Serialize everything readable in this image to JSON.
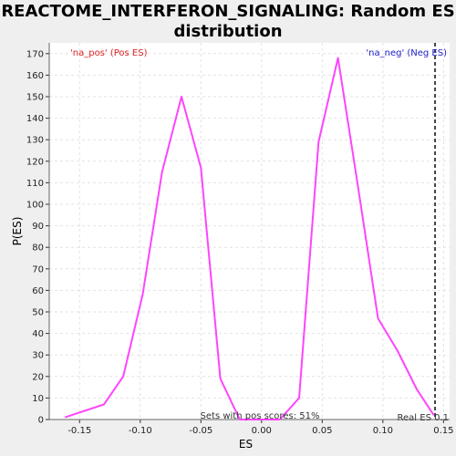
{
  "chart_data": {
    "type": "line",
    "title_lines": [
      "REACTOME_INTERFERON_SIGNALING: Random ES",
      "distribution"
    ],
    "xlabel": "ES",
    "ylabel": "P(ES)",
    "xlim": [
      -0.175,
      0.155
    ],
    "ylim": [
      0,
      175
    ],
    "xticks": [
      -0.15,
      -0.1,
      -0.05,
      0.0,
      0.05,
      0.1,
      0.15
    ],
    "xtick_labels": [
      "-0.15",
      "-0.10",
      "-0.05",
      "0.00",
      "0.05",
      "0.10",
      "0.15"
    ],
    "yticks": [
      0,
      10,
      20,
      30,
      40,
      50,
      60,
      70,
      80,
      90,
      100,
      110,
      120,
      130,
      140,
      150,
      160,
      170
    ],
    "ytick_labels": [
      "0",
      "10",
      "20",
      "30",
      "40",
      "50",
      "60",
      "70",
      "80",
      "90",
      "100",
      "110",
      "120",
      "130",
      "140",
      "150",
      "160",
      "170"
    ],
    "grid": true,
    "series": [
      {
        "color": "#ff44ff",
        "x": [
          -0.162,
          -0.13,
          -0.114,
          -0.098,
          -0.082,
          -0.066,
          -0.05,
          -0.034,
          -0.018,
          -0.002,
          0.015,
          0.031,
          0.047,
          0.063,
          0.079,
          0.096,
          0.112,
          0.128,
          0.142
        ],
        "y": [
          1,
          7,
          20,
          58,
          115,
          150,
          117,
          19,
          0,
          0,
          0,
          10,
          129,
          168,
          110,
          47,
          32,
          14,
          2
        ]
      }
    ],
    "real_es": 0.143,
    "real_es_color": "#444444",
    "annotations": {
      "pos_label": "'na_pos' (Pos ES)",
      "pos_color": "#dd2222",
      "neg_label": "'na_neg' (Neg ES)",
      "neg_color": "#2222cc",
      "pos_scores": "Sets with pos scores: 51%",
      "real_es_label": "Real ES 0.1"
    }
  }
}
